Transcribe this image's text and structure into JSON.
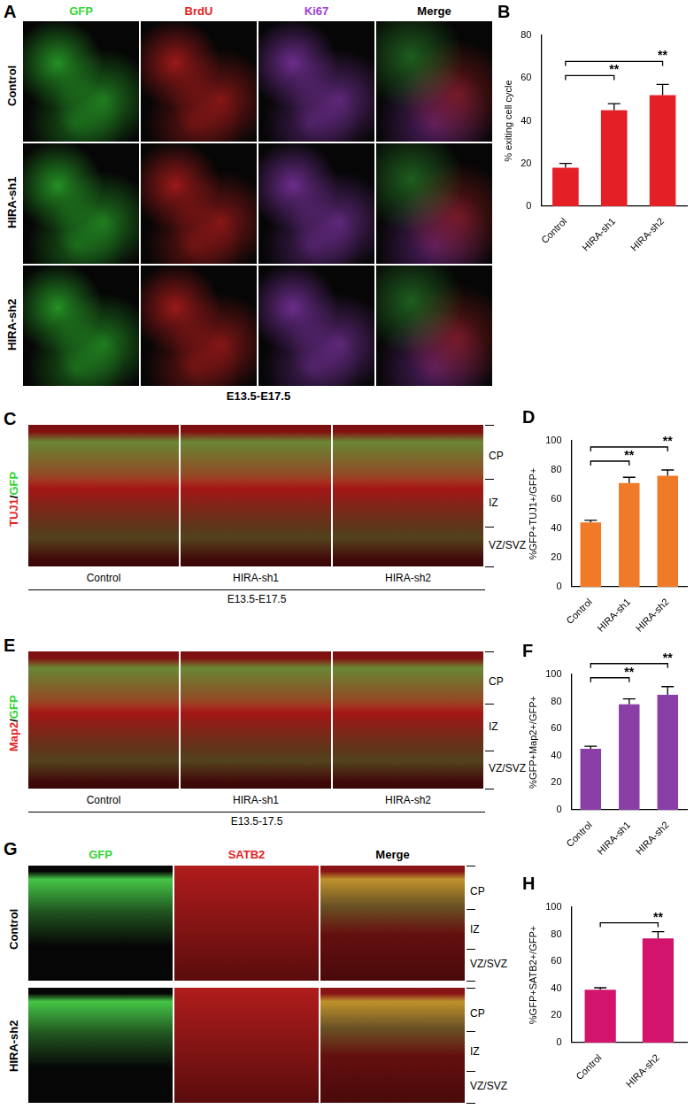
{
  "chart_data": [
    {
      "type": "bar",
      "title": "B",
      "categories": [
        "Control",
        "HIRA-sh1",
        "HIRA-sh2"
      ],
      "values": [
        18,
        45,
        52
      ],
      "errors": [
        2,
        3,
        5
      ],
      "color": "#e41f26",
      "ylabel": "% exiting cell cycle",
      "ylim": [
        0,
        80
      ],
      "yticks": [
        0,
        20,
        40,
        60,
        80
      ],
      "grid": false,
      "significance": [
        {
          "from": "Control",
          "to": "HIRA-sh1",
          "label": "**"
        },
        {
          "from": "Control",
          "to": "HIRA-sh2",
          "label": "**"
        }
      ]
    },
    {
      "type": "bar",
      "title": "D",
      "categories": [
        "Control",
        "HIRA-sh1",
        "HIRA-sh2"
      ],
      "values": [
        44,
        71,
        76
      ],
      "errors": [
        1.5,
        4,
        4
      ],
      "color": "#f07a28",
      "ylabel": "%GFP+TUJ1+/GFP+",
      "ylim": [
        0,
        100
      ],
      "yticks": [
        0,
        20,
        40,
        60,
        80,
        100
      ],
      "grid": false,
      "significance": [
        {
          "from": "Control",
          "to": "HIRA-sh1",
          "label": "**"
        },
        {
          "from": "Control",
          "to": "HIRA-sh2",
          "label": "**"
        }
      ]
    },
    {
      "type": "bar",
      "title": "F",
      "categories": [
        "Control",
        "HIRA-sh1",
        "HIRA-sh2"
      ],
      "values": [
        45,
        78,
        85
      ],
      "errors": [
        2,
        4,
        6
      ],
      "color": "#8a3fa6",
      "ylabel": "%GFP+Map2+/GFP+",
      "ylim": [
        0,
        100
      ],
      "yticks": [
        0,
        20,
        40,
        60,
        80,
        100
      ],
      "grid": false,
      "significance": [
        {
          "from": "Control",
          "to": "HIRA-sh1",
          "label": "**"
        },
        {
          "from": "Control",
          "to": "HIRA-sh2",
          "label": "**"
        }
      ]
    },
    {
      "type": "bar",
      "title": "H",
      "categories": [
        "Control",
        "HIRA-sh2"
      ],
      "values": [
        39,
        77
      ],
      "errors": [
        1.5,
        5
      ],
      "color": "#d2146c",
      "ylabel": "%GFP+SATB2+/GFP+",
      "ylim": [
        0,
        100
      ],
      "yticks": [
        0,
        20,
        40,
        60,
        80,
        100
      ],
      "grid": false,
      "significance": [
        {
          "from": "Control",
          "to": "HIRA-sh2",
          "label": "**"
        }
      ]
    }
  ],
  "panels": {
    "A": {
      "label": "A",
      "columns": [
        {
          "text": "GFP",
          "color": "#33d633"
        },
        {
          "text": "BrdU",
          "color": "#e52222"
        },
        {
          "text": "Ki67",
          "color": "#a040d0"
        },
        {
          "text": "Merge",
          "color": "#000000"
        }
      ],
      "rows": [
        "Control",
        "HIRA-sh1",
        "HIRA-sh2"
      ],
      "caption": "E13.5-E17.5"
    },
    "C": {
      "label": "C",
      "stain": [
        {
          "text": "TUJ1",
          "color": "#e52222"
        },
        {
          "text": "/",
          "color": "#000000"
        },
        {
          "text": "GFP",
          "color": "#33d633"
        }
      ],
      "conditions": [
        "Control",
        "HIRA-sh1",
        "HIRA-sh2"
      ],
      "layers": [
        "CP",
        "IZ",
        "VZ/SVZ"
      ],
      "caption": "E13.5-E17.5"
    },
    "E": {
      "label": "E",
      "stain": [
        {
          "text": "Map2",
          "color": "#e52222"
        },
        {
          "text": "/",
          "color": "#000000"
        },
        {
          "text": "GFP",
          "color": "#33d633"
        }
      ],
      "conditions": [
        "Control",
        "HIRA-sh1",
        "HIRA-sh2"
      ],
      "layers": [
        "CP",
        "IZ",
        "VZ/SVZ"
      ],
      "caption": "E13.5-17.5"
    },
    "G": {
      "label": "G",
      "columns": [
        {
          "text": "GFP",
          "color": "#33d633"
        },
        {
          "text": "SATB2",
          "color": "#e52222"
        },
        {
          "text": "Merge",
          "color": "#000000"
        }
      ],
      "rows": [
        "Control",
        "HIRA-sh2"
      ],
      "layers": [
        "CP",
        "IZ",
        "VZ/SVZ"
      ]
    }
  }
}
